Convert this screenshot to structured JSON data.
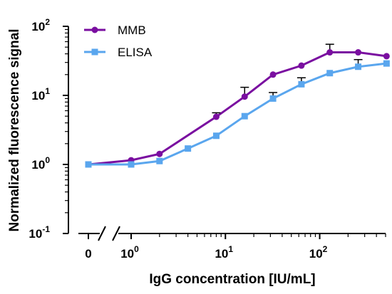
{
  "chart_data": {
    "type": "line",
    "xlabel": "IgG concentration [IU/mL]",
    "ylabel": "Normalized fluorescence signal",
    "x_scale": "log",
    "y_scale": "log",
    "x_axis_break": true,
    "zero_tick_label": "0",
    "xlim": [
      1,
      500
    ],
    "ylim": [
      0.1,
      100
    ],
    "grid": false,
    "legend_position": "top-left",
    "x_ticks": [
      {
        "base": "10",
        "exp": "0",
        "value": 1
      },
      {
        "base": "10",
        "exp": "1",
        "value": 10
      },
      {
        "base": "10",
        "exp": "2",
        "value": 100
      }
    ],
    "y_ticks": [
      {
        "base": "10",
        "exp": "-1",
        "value": 0.1
      },
      {
        "base": "10",
        "exp": "0",
        "value": 1
      },
      {
        "base": "10",
        "exp": "1",
        "value": 10
      },
      {
        "base": "10",
        "exp": "2",
        "value": 100
      }
    ],
    "series": [
      {
        "name": "MMB",
        "color": "#7a0ea0",
        "marker": "circle",
        "points": [
          {
            "x": 0,
            "y": 1.0
          },
          {
            "x": 1,
            "y": 1.15
          },
          {
            "x": 2,
            "y": 1.42
          },
          {
            "x": 8,
            "y": 4.9,
            "err": 0.7
          },
          {
            "x": 16,
            "y": 9.6,
            "err": 3.5
          },
          {
            "x": 32,
            "y": 20.0
          },
          {
            "x": 64,
            "y": 27.0
          },
          {
            "x": 128,
            "y": 42.0,
            "err": 13.0
          },
          {
            "x": 256,
            "y": 42.0
          },
          {
            "x": 512,
            "y": 37.0
          }
        ]
      },
      {
        "name": "ELISA",
        "color": "#5aa6ee",
        "marker": "square",
        "points": [
          {
            "x": 0,
            "y": 1.0
          },
          {
            "x": 1,
            "y": 1.0
          },
          {
            "x": 2,
            "y": 1.12
          },
          {
            "x": 4,
            "y": 1.7
          },
          {
            "x": 8,
            "y": 2.6
          },
          {
            "x": 16,
            "y": 5.0
          },
          {
            "x": 32,
            "y": 9.0,
            "err": 2.0
          },
          {
            "x": 64,
            "y": 14.5,
            "err": 3.5
          },
          {
            "x": 128,
            "y": 21.0
          },
          {
            "x": 256,
            "y": 26.0,
            "err": 7.0
          },
          {
            "x": 512,
            "y": 29.0
          }
        ]
      }
    ]
  }
}
